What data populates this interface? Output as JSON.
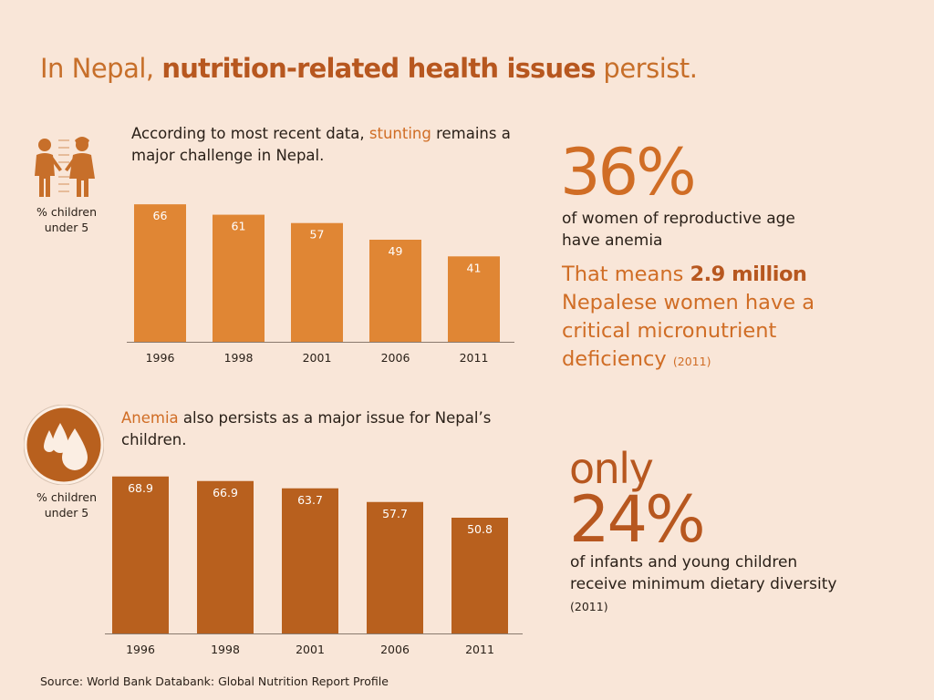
{
  "title": {
    "prefix": "In Nepal, ",
    "highlight": "nutrition-related health issues",
    "suffix": " persist."
  },
  "stunting_section": {
    "intro_prefix": "According to most recent data, ",
    "intro_highlight": "stunting",
    "intro_suffix": " remains a major challenge in Nepal.",
    "unit_line1": "% children",
    "unit_line2": "under 5"
  },
  "anemia_section": {
    "intro_highlight": "Anemia",
    "intro_suffix": " also persists as a major issue for Nepal’s children.",
    "unit_line1": "% children",
    "unit_line2": "under 5"
  },
  "stat_women": {
    "value": "36%",
    "desc": "of women of reproductive age have anemia",
    "callout_prefix": "That means ",
    "callout_highlight": "2.9 million",
    "callout_suffix": " Nepalese women have a critical micronutrient deficiency",
    "callout_year": "(2011)"
  },
  "stat_infants": {
    "qualifier": "only",
    "value": "24%",
    "desc": "of infants and young children receive minimum dietary diversity",
    "year": "(2011)"
  },
  "source": "Source: World Bank Databank: Global Nutrition Report Profile",
  "colors": {
    "background": "#f9e6d8",
    "stunting_bar": "#e08634",
    "anemia_bar": "#b8601e",
    "accent": "#d06d25",
    "accent_dark": "#b7571f"
  },
  "chart_data": [
    {
      "type": "bar",
      "title": "Stunting",
      "ylabel": "% children under 5",
      "categories": [
        "1996",
        "1998",
        "2001",
        "2006",
        "2011"
      ],
      "values": [
        66,
        61,
        57,
        49,
        41
      ],
      "value_labels": [
        "66",
        "61",
        "57",
        "49",
        "41"
      ],
      "ylim": [
        0,
        70
      ]
    },
    {
      "type": "bar",
      "title": "Anemia",
      "ylabel": "% children under 5",
      "categories": [
        "1996",
        "1998",
        "2001",
        "2006",
        "2011"
      ],
      "values": [
        68.9,
        66.9,
        63.7,
        57.7,
        50.8
      ],
      "value_labels": [
        "68.9",
        "66.9",
        "63.7",
        "57.7",
        "50.8"
      ],
      "ylim": [
        0,
        70
      ]
    }
  ]
}
